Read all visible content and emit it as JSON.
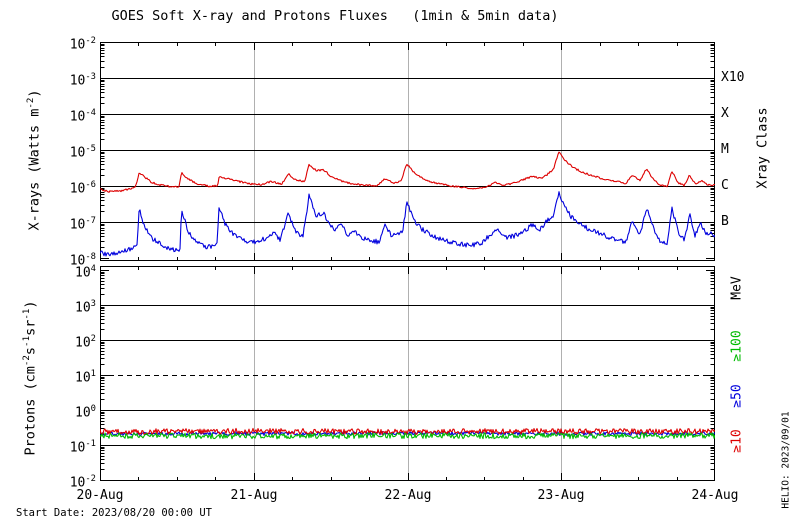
{
  "title": "GOES Soft X-ray and Protons Fluxes   (1min & 5min data)",
  "labels": {
    "xray_ylabel": {
      "pre": "X-rays (Watts m",
      "sup": "-2",
      "post": ")"
    },
    "protons_ylabel": {
      "p0": "Protons (cm",
      "s0": "-2",
      "p1": "s",
      "s1": "-1",
      "p2": "sr",
      "s2": "-1",
      "p3": ")"
    },
    "xray_class": "Xray Class",
    "mev": "MeV",
    "ge100": "≥100",
    "ge50": "≥50",
    "ge10": "≥10"
  },
  "footer": {
    "start_date": "Start Date: 2023/08/20 00:00 UT",
    "credit": "HELIO: 2023/09/01"
  },
  "colors": {
    "red": "#dd0000",
    "blue": "#0000dd",
    "green": "#00bb00",
    "grid_gray": "#b0b0b0",
    "axis": "#000000",
    "background": "#ffffff"
  },
  "chart_data": [
    {
      "type": "line",
      "name": "goes-soft-xray-flux",
      "ylabel": "X-rays (Watts m-2)",
      "y_scale": "log",
      "y_tick_exponents": [
        -2,
        -3,
        -4,
        -5,
        -6,
        -7,
        -8
      ],
      "ylim_exp": [
        -2,
        -8.08
      ],
      "hlines_exp": [
        -3,
        -4,
        -5,
        -6,
        -7
      ],
      "right_axis_label": "Xray Class",
      "class_ticks": [
        {
          "label": "X10",
          "exp": -3
        },
        {
          "label": "X",
          "exp": -4
        },
        {
          "label": "M",
          "exp": -5
        },
        {
          "label": "C",
          "exp": -6
        },
        {
          "label": "B",
          "exp": -7
        }
      ],
      "x_range_days": [
        0,
        4
      ],
      "x_tick_labels": [
        "20-Aug",
        "21-Aug",
        "22-Aug",
        "23-Aug",
        "24-Aug"
      ],
      "x_minor_tick_hours": 6,
      "grid_vertical_days": [
        1,
        2,
        3
      ],
      "series": [
        {
          "name": "xray-red-channel",
          "color": "#dd0000",
          "noise_dec": 0.05,
          "points": [
            [
              0.0,
              8e-07
            ],
            [
              0.06,
              7e-07
            ],
            [
              0.12,
              7.2e-07
            ],
            [
              0.18,
              8e-07
            ],
            [
              0.23,
              9e-07
            ],
            [
              0.255,
              2.4e-06
            ],
            [
              0.29,
              1.8e-06
            ],
            [
              0.33,
              1.3e-06
            ],
            [
              0.4,
              1.05e-06
            ],
            [
              0.47,
              9.5e-07
            ],
            [
              0.515,
              9.5e-07
            ],
            [
              0.53,
              2.4e-06
            ],
            [
              0.57,
              1.6e-06
            ],
            [
              0.62,
              1.2e-06
            ],
            [
              0.7,
              1e-06
            ],
            [
              0.765,
              1e-06
            ],
            [
              0.775,
              1.85e-06
            ],
            [
              0.83,
              1.6e-06
            ],
            [
              0.9,
              1.35e-06
            ],
            [
              0.97,
              1.15e-06
            ],
            [
              1.05,
              1.1e-06
            ],
            [
              1.12,
              1.35e-06
            ],
            [
              1.18,
              1.1e-06
            ],
            [
              1.225,
              2.2e-06
            ],
            [
              1.27,
              1.5e-06
            ],
            [
              1.33,
              1.3e-06
            ],
            [
              1.36,
              3.9e-06
            ],
            [
              1.41,
              2.6e-06
            ],
            [
              1.45,
              2.9e-06
            ],
            [
              1.5,
              1.9e-06
            ],
            [
              1.56,
              1.4e-06
            ],
            [
              1.64,
              1.15e-06
            ],
            [
              1.73,
              1.05e-06
            ],
            [
              1.8,
              1e-06
            ],
            [
              1.855,
              1.6e-06
            ],
            [
              1.91,
              1.2e-06
            ],
            [
              1.96,
              1.4e-06
            ],
            [
              1.995,
              4.2e-06
            ],
            [
              2.04,
              2.5e-06
            ],
            [
              2.1,
              1.6e-06
            ],
            [
              2.18,
              1.2e-06
            ],
            [
              2.28,
              1e-06
            ],
            [
              2.38,
              9e-07
            ],
            [
              2.46,
              8.5e-07
            ],
            [
              2.52,
              9.5e-07
            ],
            [
              2.575,
              1.25e-06
            ],
            [
              2.63,
              1.05e-06
            ],
            [
              2.7,
              1.25e-06
            ],
            [
              2.77,
              1.6e-06
            ],
            [
              2.82,
              1.9e-06
            ],
            [
              2.87,
              1.6e-06
            ],
            [
              2.91,
              2.1e-06
            ],
            [
              2.95,
              3e-06
            ],
            [
              2.985,
              9e-06
            ],
            [
              3.02,
              5.5e-06
            ],
            [
              3.07,
              3.4e-06
            ],
            [
              3.13,
              2.5e-06
            ],
            [
              3.19,
              2e-06
            ],
            [
              3.27,
              1.6e-06
            ],
            [
              3.35,
              1.35e-06
            ],
            [
              3.42,
              1.2e-06
            ],
            [
              3.465,
              2e-06
            ],
            [
              3.51,
              1.4e-06
            ],
            [
              3.555,
              3e-06
            ],
            [
              3.6,
              1.5e-06
            ],
            [
              3.645,
              1.05e-06
            ],
            [
              3.69,
              1e-06
            ],
            [
              3.72,
              2.6e-06
            ],
            [
              3.76,
              1.25e-06
            ],
            [
              3.8,
              1.05e-06
            ],
            [
              3.835,
              2e-06
            ],
            [
              3.87,
              1.15e-06
            ],
            [
              3.91,
              1.4e-06
            ],
            [
              3.95,
              1.1e-06
            ],
            [
              4.0,
              1.05e-06
            ]
          ]
        },
        {
          "name": "xray-blue-channel",
          "color": "#0000dd",
          "noise_dec": 0.13,
          "points": [
            [
              0.0,
              1.5e-08
            ],
            [
              0.05,
              1.2e-08
            ],
            [
              0.1,
              1.4e-08
            ],
            [
              0.16,
              1.6e-08
            ],
            [
              0.21,
              1.9e-08
            ],
            [
              0.24,
              2.2e-08
            ],
            [
              0.255,
              2.3e-07
            ],
            [
              0.29,
              7e-08
            ],
            [
              0.34,
              3.5e-08
            ],
            [
              0.41,
              2.2e-08
            ],
            [
              0.48,
              1.7e-08
            ],
            [
              0.52,
              1.8e-08
            ],
            [
              0.53,
              2.2e-07
            ],
            [
              0.57,
              6e-08
            ],
            [
              0.62,
              3e-08
            ],
            [
              0.69,
              2e-08
            ],
            [
              0.76,
              2.2e-08
            ],
            [
              0.775,
              2.6e-07
            ],
            [
              0.81,
              9e-08
            ],
            [
              0.86,
              5e-08
            ],
            [
              0.91,
              3.5e-08
            ],
            [
              0.97,
              2.6e-08
            ],
            [
              1.03,
              3e-08
            ],
            [
              1.09,
              3.6e-08
            ],
            [
              1.13,
              5.5e-08
            ],
            [
              1.17,
              3.2e-08
            ],
            [
              1.225,
              1.7e-07
            ],
            [
              1.27,
              5.5e-08
            ],
            [
              1.32,
              4e-08
            ],
            [
              1.36,
              5.5e-07
            ],
            [
              1.41,
              1.4e-07
            ],
            [
              1.45,
              1.9e-07
            ],
            [
              1.49,
              9e-08
            ],
            [
              1.53,
              6e-08
            ],
            [
              1.565,
              9.5e-08
            ],
            [
              1.61,
              4.5e-08
            ],
            [
              1.655,
              5.5e-08
            ],
            [
              1.7,
              3.6e-08
            ],
            [
              1.76,
              3e-08
            ],
            [
              1.82,
              2.8e-08
            ],
            [
              1.855,
              8.5e-08
            ],
            [
              1.9,
              4e-08
            ],
            [
              1.94,
              5e-08
            ],
            [
              1.97,
              6e-08
            ],
            [
              1.995,
              3.6e-07
            ],
            [
              2.04,
              1.1e-07
            ],
            [
              2.1,
              6e-08
            ],
            [
              2.17,
              4e-08
            ],
            [
              2.25,
              3e-08
            ],
            [
              2.33,
              2.5e-08
            ],
            [
              2.41,
              2.2e-08
            ],
            [
              2.48,
              2.6e-08
            ],
            [
              2.54,
              4.5e-08
            ],
            [
              2.585,
              6.5e-08
            ],
            [
              2.64,
              3.6e-08
            ],
            [
              2.7,
              4.2e-08
            ],
            [
              2.76,
              5.5e-08
            ],
            [
              2.81,
              8.5e-08
            ],
            [
              2.86,
              6e-08
            ],
            [
              2.91,
              1.1e-07
            ],
            [
              2.95,
              1.6e-07
            ],
            [
              2.985,
              6.2e-07
            ],
            [
              3.02,
              2.8e-07
            ],
            [
              3.07,
              1.3e-07
            ],
            [
              3.13,
              8.5e-08
            ],
            [
              3.19,
              6e-08
            ],
            [
              3.27,
              4.5e-08
            ],
            [
              3.35,
              3.2e-08
            ],
            [
              3.42,
              2.8e-08
            ],
            [
              3.465,
              1.15e-07
            ],
            [
              3.51,
              4.2e-08
            ],
            [
              3.555,
              2.6e-07
            ],
            [
              3.6,
              6.5e-08
            ],
            [
              3.645,
              3e-08
            ],
            [
              3.69,
              2.6e-08
            ],
            [
              3.72,
              2.3e-07
            ],
            [
              3.76,
              5.5e-08
            ],
            [
              3.8,
              3e-08
            ],
            [
              3.835,
              1.6e-07
            ],
            [
              3.87,
              4.2e-08
            ],
            [
              3.905,
              9.5e-08
            ],
            [
              3.94,
              4.5e-08
            ],
            [
              3.97,
              5.5e-08
            ],
            [
              4.0,
              3.8e-08
            ]
          ]
        }
      ]
    },
    {
      "type": "line",
      "name": "goes-proton-flux",
      "ylabel": "Protons (cm-2 s-1 sr-1)",
      "y_scale": "log",
      "y_tick_exponents": [
        4,
        3,
        2,
        1,
        0,
        -1,
        -2
      ],
      "ylim_exp": [
        4.11,
        -2.03
      ],
      "hlines_exp": [
        3,
        2,
        0,
        -1
      ],
      "dashed_exp": 1,
      "right_axis_label": "MeV",
      "energy_ticks": [
        {
          "label": "≥100",
          "color": "#00bb00"
        },
        {
          "label": "≥50",
          "color": "#0000dd"
        },
        {
          "label": "≥10",
          "color": "#dd0000"
        }
      ],
      "x_range_days": [
        0,
        4
      ],
      "x_tick_labels": [
        "20-Aug",
        "21-Aug",
        "22-Aug",
        "23-Aug",
        "24-Aug"
      ],
      "x_minor_tick_hours": 6,
      "grid_vertical_days": [
        1,
        2,
        3
      ],
      "series": [
        {
          "name": "protons-ge50MeV",
          "color": "#0000dd",
          "noise_dec": 0.1,
          "points": [
            [
              0,
              0.21
            ],
            [
              1,
              0.21
            ],
            [
              2,
              0.22
            ],
            [
              3,
              0.21
            ],
            [
              4,
              0.21
            ]
          ]
        },
        {
          "name": "protons-ge10MeV",
          "color": "#dd0000",
          "noise_dec": 0.16,
          "points": [
            [
              0,
              0.24
            ],
            [
              1,
              0.25
            ],
            [
              2,
              0.24
            ],
            [
              3,
              0.25
            ],
            [
              4,
              0.24
            ]
          ]
        },
        {
          "name": "protons-ge100MeV",
          "color": "#00bb00",
          "noise_dec": 0.16,
          "points": [
            [
              0,
              0.185
            ],
            [
              1,
              0.18
            ],
            [
              2,
              0.185
            ],
            [
              3,
              0.18
            ],
            [
              4,
              0.185
            ]
          ]
        }
      ]
    }
  ]
}
